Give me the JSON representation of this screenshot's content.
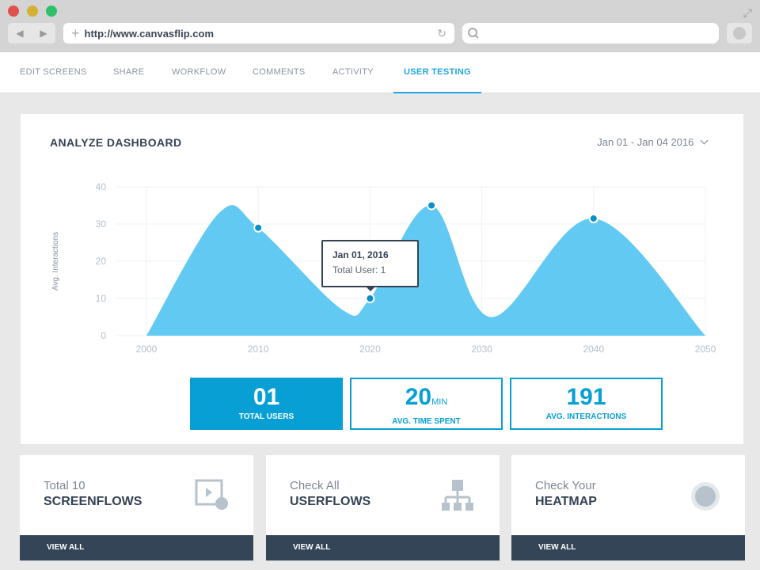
{
  "browser": {
    "url": "http://www.canvasflip.com",
    "dots": [
      "#e0504f",
      "#d6b032",
      "#2fc16a"
    ]
  },
  "tabs": [
    {
      "label": "EDIT SCREENS"
    },
    {
      "label": "SHARE"
    },
    {
      "label": "WORKFLOW"
    },
    {
      "label": "COMMENTS"
    },
    {
      "label": "ACTIVITY"
    },
    {
      "label": "USER TESTING",
      "active": true
    }
  ],
  "dashboard": {
    "title": "ANALYZE DASHBOARD",
    "date_range": "Jan 01 - Jan 04 2016"
  },
  "tooltip": {
    "date": "Jan 01, 2016",
    "text": "Total User: 1"
  },
  "chart_data": {
    "type": "area",
    "ylabel": "Avg. Interactions",
    "xlim": [
      2000,
      2050
    ],
    "ylim": [
      0,
      40
    ],
    "xticks": [
      2000,
      2010,
      2020,
      2030,
      2040,
      2050
    ],
    "yticks": [
      0,
      10,
      20,
      30,
      40
    ],
    "grid": true,
    "color": "#62c9f2",
    "x": [
      2000,
      2006.5,
      2010,
      2017.5,
      2020,
      2025.5,
      2030.8,
      2040,
      2050
    ],
    "y": [
      0,
      33,
      29,
      7,
      10,
      35,
      5,
      31.5,
      0
    ],
    "markers": [
      {
        "x": 2010,
        "y": 29
      },
      {
        "x": 2020,
        "y": 10
      },
      {
        "x": 2025.5,
        "y": 35
      },
      {
        "x": 2040,
        "y": 31.5
      }
    ]
  },
  "stats": [
    {
      "value": "01",
      "unit": "",
      "label": "TOTAL USERS"
    },
    {
      "value": "20",
      "unit": "MIN",
      "label": "AVG. TIME SPENT"
    },
    {
      "value": "191",
      "unit": "",
      "label": "AVG. INTERACTIONS"
    }
  ],
  "cards": [
    {
      "sub": "Total 10",
      "title": "SCREENFLOWS",
      "button": "VIEW ALL",
      "icon": "video-touch-icon"
    },
    {
      "sub": "Check All",
      "title": "USERFLOWS",
      "button": "VIEW ALL",
      "icon": "sitemap-icon"
    },
    {
      "sub": "Check Your",
      "title": "HEATMAP",
      "button": "VIEW ALL",
      "icon": "circle-icon"
    }
  ]
}
